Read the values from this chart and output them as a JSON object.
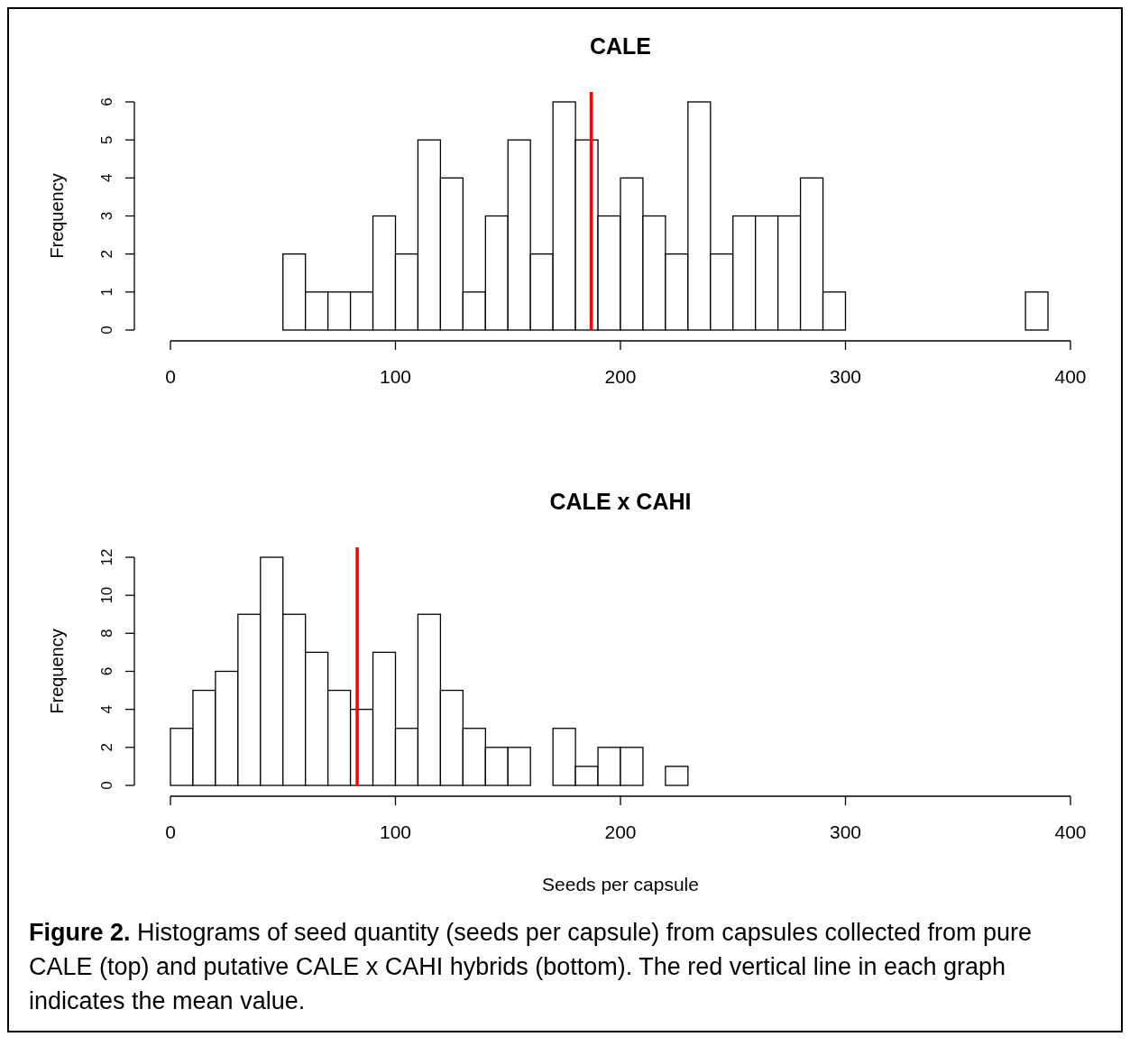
{
  "chart_data": [
    {
      "type": "histogram",
      "title": "CALE",
      "ylabel": "Frequency",
      "color": "#ffffff",
      "bins": [
        0,
        10,
        20,
        30,
        40,
        50,
        60,
        70,
        80,
        90,
        100,
        110,
        120,
        130,
        140,
        150,
        160,
        170,
        180,
        190,
        200,
        210,
        220,
        230,
        240,
        250,
        260,
        270,
        280,
        290,
        300,
        310,
        320,
        330,
        340,
        350,
        360,
        370,
        380,
        390,
        400
      ],
      "values": [
        0,
        0,
        0,
        0,
        0,
        2,
        1,
        1,
        1,
        3,
        2,
        5,
        4,
        1,
        3,
        5,
        2,
        6,
        5,
        3,
        4,
        3,
        2,
        6,
        2,
        3,
        3,
        3,
        4,
        1,
        0,
        0,
        0,
        0,
        0,
        0,
        0,
        0,
        1,
        0
      ],
      "xlim": [
        0,
        400
      ],
      "xticks": [
        0,
        100,
        200,
        300,
        400
      ],
      "ylim": [
        0,
        6
      ],
      "yticks": [
        0,
        1,
        2,
        3,
        4,
        5,
        6
      ],
      "ref_lines": [
        {
          "axis": "x",
          "value": 187,
          "color": "#ff0000"
        }
      ]
    },
    {
      "type": "histogram",
      "title": "CALE x CAHI",
      "xlabel": "Seeds per capsule",
      "ylabel": "Frequency",
      "color": "#ffffff",
      "bins": [
        0,
        10,
        20,
        30,
        40,
        50,
        60,
        70,
        80,
        90,
        100,
        110,
        120,
        130,
        140,
        150,
        160,
        170,
        180,
        190,
        200,
        210,
        220,
        230,
        240,
        250,
        260,
        270,
        280,
        290,
        300,
        310,
        320,
        330,
        340,
        350,
        360,
        370,
        380,
        390,
        400
      ],
      "values": [
        3,
        5,
        6,
        9,
        12,
        9,
        7,
        5,
        4,
        7,
        3,
        9,
        5,
        3,
        2,
        2,
        0,
        3,
        1,
        2,
        2,
        0,
        1,
        0,
        0,
        0,
        0,
        0,
        0,
        0,
        0,
        0,
        0,
        0,
        0,
        0,
        0,
        0,
        0,
        0
      ],
      "xlim": [
        0,
        400
      ],
      "xticks": [
        0,
        100,
        200,
        300,
        400
      ],
      "ylim": [
        0,
        12
      ],
      "yticks": [
        0,
        2,
        4,
        6,
        8,
        10,
        12
      ],
      "ref_lines": [
        {
          "axis": "x",
          "value": 83,
          "color": "#ff0000"
        }
      ],
      "annotations": [
        "Figure 2.",
        "Histograms of seed quantity (seeds per capsule) from capsules collected from pure CALE (top) and putative CALE x CAHI hybrids (bottom).  The red vertical line in each graph indicates the mean value."
      ]
    }
  ]
}
